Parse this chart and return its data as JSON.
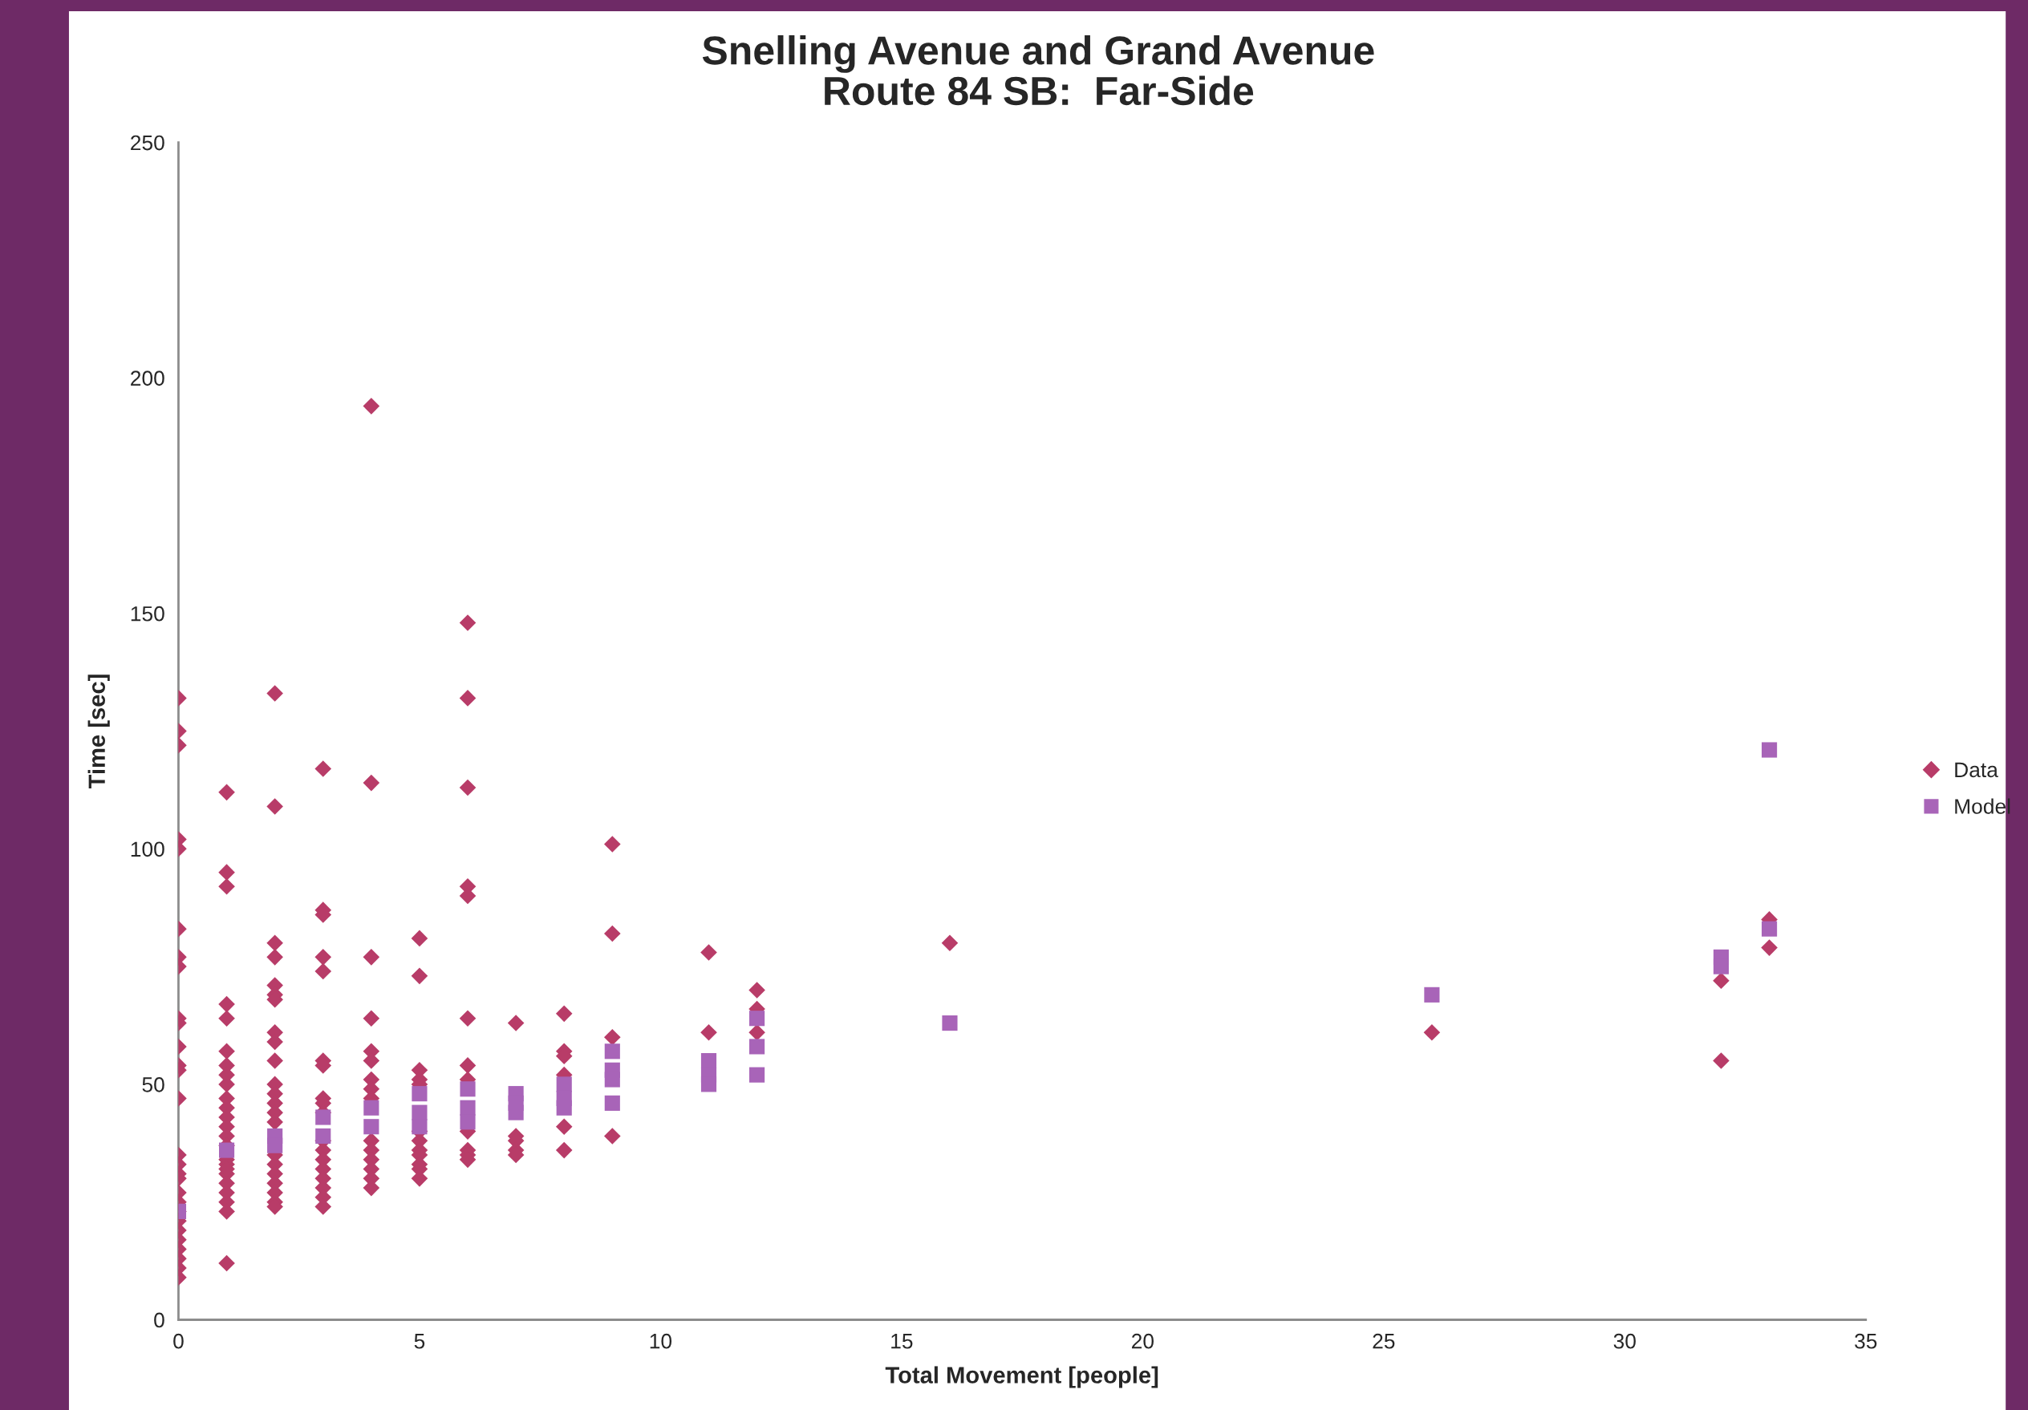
{
  "chart_data": {
    "type": "scatter",
    "title": "Snelling Avenue and Grand Avenue\nRoute 84 SB:  Far-Side",
    "xlabel": "Total Movement [people]",
    "ylabel": "Time [sec]",
    "xlim": [
      0,
      35
    ],
    "xticks": [
      0,
      5,
      10,
      15,
      20,
      25,
      30,
      35
    ],
    "ylim": [
      0,
      250
    ],
    "yticks": [
      0,
      50,
      100,
      150,
      200,
      250
    ],
    "grid": false,
    "legend": "right",
    "series": [
      {
        "name": "Data",
        "color": "#b83c68",
        "marker": "diamond",
        "x": [
          0,
          0,
          0,
          0,
          0,
          0,
          0,
          0,
          0,
          0,
          0,
          0,
          0,
          0,
          0,
          0,
          0,
          0,
          0,
          0,
          0,
          0,
          0,
          0,
          0,
          0,
          0,
          0,
          1,
          1,
          1,
          1,
          1,
          1,
          1,
          1,
          1,
          1,
          1,
          1,
          1,
          1,
          1,
          1,
          1,
          1,
          1,
          1,
          1,
          1,
          1,
          1,
          2,
          2,
          2,
          2,
          2,
          2,
          2,
          2,
          2,
          2,
          2,
          2,
          2,
          2,
          2,
          2,
          2,
          2,
          2,
          2,
          2,
          2,
          3,
          3,
          3,
          3,
          3,
          3,
          3,
          3,
          3,
          3,
          3,
          3,
          3,
          3,
          3,
          3,
          3,
          3,
          4,
          4,
          4,
          4,
          4,
          4,
          4,
          4,
          4,
          4,
          4,
          4,
          4,
          4,
          4,
          5,
          5,
          5,
          5,
          5,
          5,
          5,
          5,
          5,
          5,
          5,
          5,
          6,
          6,
          6,
          6,
          6,
          6,
          6,
          6,
          6,
          6,
          6,
          6,
          7,
          7,
          7,
          7,
          7,
          8,
          8,
          8,
          8,
          8,
          8,
          9,
          9,
          9,
          9,
          11,
          11,
          12,
          12,
          12,
          16,
          26,
          32,
          32,
          33,
          33
        ],
        "values": [
          132,
          125,
          122,
          102,
          100,
          83,
          77,
          75,
          64,
          63,
          58,
          54,
          53,
          47,
          35,
          33,
          31,
          30,
          27,
          25,
          23,
          21,
          19,
          17,
          15,
          13,
          11,
          9,
          112,
          95,
          92,
          67,
          64,
          57,
          54,
          52,
          50,
          47,
          45,
          43,
          41,
          39,
          37,
          33,
          31,
          29,
          27,
          25,
          23,
          12,
          34,
          32,
          133,
          109,
          80,
          77,
          71,
          69,
          68,
          61,
          59,
          55,
          50,
          48,
          46,
          44,
          42,
          35,
          33,
          31,
          29,
          27,
          25,
          24,
          117,
          87,
          86,
          77,
          74,
          55,
          54,
          47,
          46,
          44,
          38,
          36,
          34,
          32,
          30,
          28,
          26,
          24,
          194,
          114,
          77,
          64,
          57,
          55,
          51,
          49,
          47,
          38,
          36,
          34,
          32,
          30,
          28,
          81,
          73,
          53,
          51,
          50,
          40,
          38,
          36,
          35,
          33,
          32,
          30,
          148,
          132,
          113,
          92,
          90,
          64,
          54,
          51,
          40,
          36,
          35,
          34,
          63,
          39,
          38,
          36,
          35,
          65,
          57,
          56,
          52,
          41,
          36,
          101,
          82,
          60,
          39,
          78,
          61,
          70,
          66,
          61,
          80,
          61,
          72,
          55,
          85,
          79
        ]
      },
      {
        "name": "Model",
        "color": "#a864b8",
        "marker": "square",
        "x": [
          0,
          1,
          2,
          2,
          3,
          3,
          4,
          4,
          5,
          5,
          5,
          6,
          6,
          6,
          7,
          7,
          7,
          8,
          8,
          8,
          9,
          9,
          9,
          9,
          11,
          11,
          11,
          12,
          12,
          12,
          16,
          26,
          32,
          32,
          33,
          33
        ],
        "values": [
          23,
          36,
          39,
          37,
          43,
          39,
          45,
          41,
          48,
          44,
          41,
          49,
          45,
          42,
          48,
          46,
          44,
          50,
          47,
          45,
          57,
          53,
          51,
          46,
          55,
          52,
          50,
          64,
          58,
          52,
          63,
          69,
          77,
          75,
          121,
          83
        ]
      }
    ]
  }
}
